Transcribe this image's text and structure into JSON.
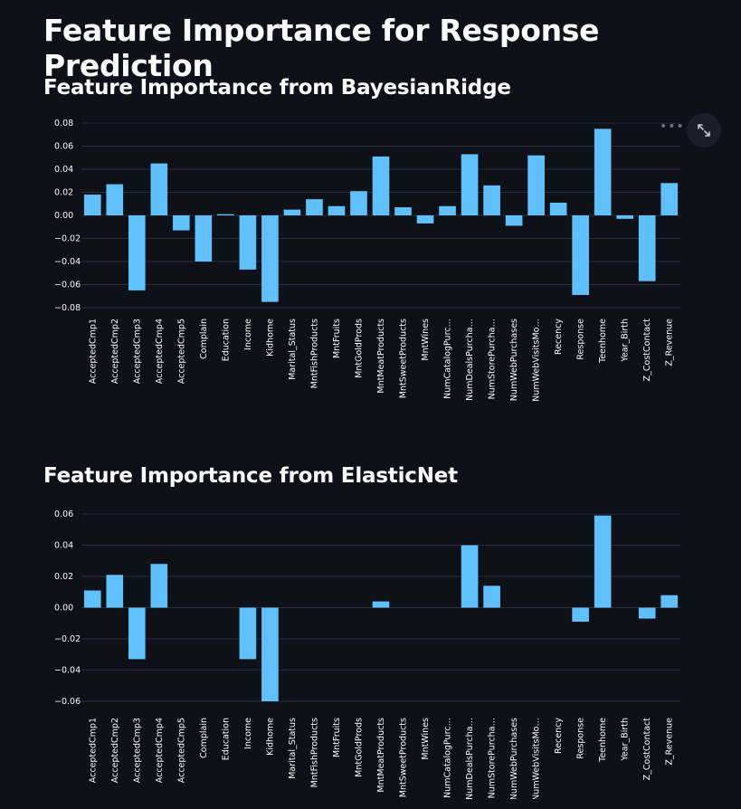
{
  "page": {
    "title": "Feature Importance for Response Prediction"
  },
  "chart_data": [
    {
      "type": "bar",
      "title": "Feature Importance from BayesianRidge",
      "xlabel": "",
      "ylabel": "",
      "ylim": [
        -0.08,
        0.08
      ],
      "yticks": [
        0.08,
        0.06,
        0.04,
        0.02,
        0.0,
        -0.02,
        -0.04,
        -0.06,
        -0.08
      ],
      "ytick_labels": [
        "0.08",
        "0.06",
        "0.04",
        "0.02",
        "0.00",
        "−0.02",
        "−0.04",
        "−0.06",
        "−0.08"
      ],
      "categories": [
        "AcceptedCmp1",
        "AcceptedCmp2",
        "AcceptedCmp3",
        "AcceptedCmp4",
        "AcceptedCmp5",
        "Complain",
        "Education",
        "Income",
        "Kidhome",
        "Marital_Status",
        "MntFishProducts",
        "MntFruits",
        "MntGoldProds",
        "MntMeatProducts",
        "MntSweetProducts",
        "MntWines",
        "NumCatalogPurc…",
        "NumDealsPurcha…",
        "NumStorePurcha…",
        "NumWebPurchases",
        "NumWebVisitsMo…",
        "Recency",
        "Response",
        "Teenhome",
        "Year_Birth",
        "Z_CostContact",
        "Z_Revenue"
      ],
      "values": [
        0.018,
        0.027,
        -0.065,
        0.045,
        -0.013,
        -0.04,
        0.001,
        -0.047,
        -0.075,
        0.005,
        0.014,
        0.008,
        0.021,
        0.051,
        0.007,
        -0.007,
        0.008,
        0.053,
        0.026,
        -0.009,
        0.052,
        0.011,
        -0.069,
        0.075,
        -0.003,
        -0.057,
        0.028
      ],
      "color": "#60c0fb",
      "grid": true
    },
    {
      "type": "bar",
      "title": "Feature Importance from ElasticNet",
      "xlabel": "",
      "ylabel": "",
      "ylim": [
        -0.06,
        0.06
      ],
      "yticks": [
        0.06,
        0.04,
        0.02,
        0.0,
        -0.02,
        -0.04,
        -0.06
      ],
      "ytick_labels": [
        "0.06",
        "0.04",
        "0.02",
        "0.00",
        "−0.02",
        "−0.04",
        "−0.06"
      ],
      "categories": [
        "AcceptedCmp1",
        "AcceptedCmp2",
        "AcceptedCmp3",
        "AcceptedCmp4",
        "AcceptedCmp5",
        "Complain",
        "Education",
        "Income",
        "Kidhome",
        "Marital_Status",
        "MntFishProducts",
        "MntFruits",
        "MntGoldProds",
        "MntMeatProducts",
        "MntSweetProducts",
        "MntWines",
        "NumCatalogPurc…",
        "NumDealsPurcha…",
        "NumStorePurcha…",
        "NumWebPurchases",
        "NumWebVisitsMo…",
        "Recency",
        "Response",
        "Teenhome",
        "Year_Birth",
        "Z_CostContact",
        "Z_Revenue"
      ],
      "values": [
        0.011,
        0.021,
        -0.033,
        0.028,
        0,
        0,
        0,
        -0.033,
        -0.06,
        0,
        0,
        0,
        0,
        0.004,
        0,
        0,
        0,
        0.04,
        0.014,
        0,
        0,
        0,
        -0.009,
        0.059,
        0,
        -0.007,
        0.008
      ],
      "color": "#60c0fb",
      "grid": true
    }
  ],
  "toolbar": {
    "more_icon": "more-horizontal-icon",
    "expand_icon": "fullscreen-expand-icon"
  }
}
